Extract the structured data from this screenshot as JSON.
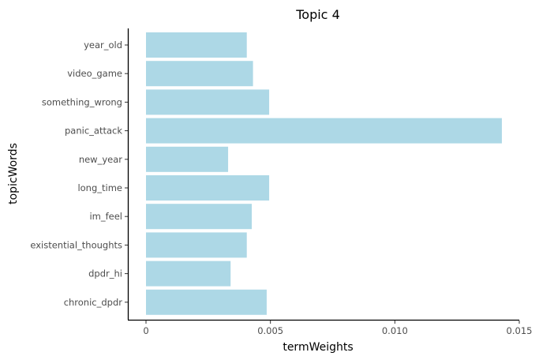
{
  "chart_data": {
    "type": "bar",
    "orientation": "horizontal",
    "title": "Topic 4",
    "xlabel": "termWeights",
    "ylabel": "topicWords",
    "categories": [
      "year_old",
      "video_game",
      "something_wrong",
      "panic_attack",
      "new_year",
      "long_time",
      "im_feel",
      "existential_thoughts",
      "dpdr_hi",
      "chronic_dpdr"
    ],
    "values": [
      0.00405,
      0.0043,
      0.00495,
      0.0143,
      0.0033,
      0.00495,
      0.00425,
      0.00405,
      0.0034,
      0.00485
    ],
    "xlim": [
      0,
      0.015
    ],
    "xticks": [
      0,
      0.005,
      0.01,
      0.015
    ],
    "xtick_labels": [
      "0",
      "0.005",
      "0.010",
      "0.015"
    ],
    "bar_color": "#add8e6",
    "grid": false,
    "legend": "none"
  }
}
